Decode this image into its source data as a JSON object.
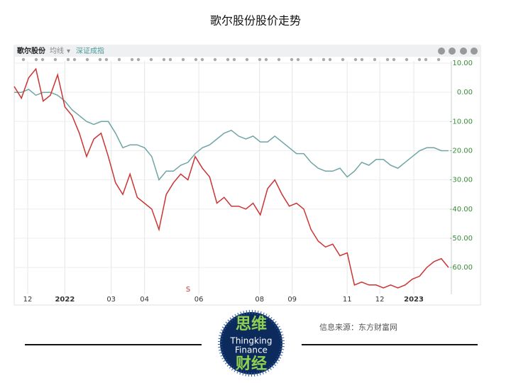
{
  "chart_data": {
    "type": "line",
    "title": "歌尔股份股价走势",
    "toolbar": {
      "ma": "均线"
    },
    "marker": "S",
    "source": "信息来源：东方财富网",
    "logo": {
      "top": "思维",
      "line1": "Thingking",
      "line2": "Finance",
      "bottom": "财经"
    },
    "x": [
      0,
      1,
      2,
      3,
      4,
      5,
      6,
      7,
      8,
      9,
      10,
      11,
      12,
      13,
      14,
      15,
      16,
      17,
      18,
      19,
      20,
      21,
      22,
      23,
      24,
      25,
      26,
      27,
      28,
      29,
      30,
      31,
      32,
      33,
      34,
      35,
      36,
      37,
      38,
      39,
      40,
      41,
      42,
      43,
      44,
      45,
      46,
      47,
      48,
      49,
      50,
      51,
      52,
      53,
      54,
      55,
      56,
      57,
      58,
      59,
      60
    ],
    "xlim": [
      0,
      60
    ],
    "xticks": [
      {
        "value": 1.86,
        "label": "12"
      },
      {
        "value": 7,
        "label": "2022"
      },
      {
        "value": 13.4,
        "label": "03"
      },
      {
        "value": 18,
        "label": "04"
      },
      {
        "value": 25.5,
        "label": "06"
      },
      {
        "value": 33.9,
        "label": "08"
      },
      {
        "value": 38.4,
        "label": "09"
      },
      {
        "value": 46,
        "label": "11"
      },
      {
        "value": 50.5,
        "label": "12"
      },
      {
        "value": 55.2,
        "label": "2023"
      }
    ],
    "ylim": [
      -68,
      10
    ],
    "yticks": [
      {
        "value": 10,
        "label": "10.00"
      },
      {
        "value": 0,
        "label": "0.00"
      },
      {
        "value": -10,
        "label": "-10.00"
      },
      {
        "value": -20,
        "label": "-20.00"
      },
      {
        "value": -30,
        "label": "-30.00"
      },
      {
        "value": -40,
        "label": "-40.00"
      },
      {
        "value": -50,
        "label": "-50.00"
      },
      {
        "value": -60,
        "label": "-60.00"
      }
    ],
    "grid": true,
    "series": [
      {
        "name": "歌尔股份",
        "color": "#cc3333",
        "values": [
          2,
          -2,
          5,
          8,
          -3,
          -1,
          6,
          -5,
          -8,
          -14,
          -22,
          -16,
          -14,
          -22,
          -31,
          -35,
          -28,
          -36,
          -38,
          -40,
          -47,
          -35,
          -31,
          -28,
          -30,
          -22,
          -26,
          -29,
          -38,
          -36,
          -39,
          -39,
          -40,
          -38,
          -42,
          -33,
          -30,
          -35,
          -39,
          -38,
          -40,
          -47,
          -51,
          -53,
          -52,
          -56,
          -55,
          -66,
          -65,
          -66,
          -66,
          -67,
          -66,
          -67,
          -66,
          -64,
          -63,
          -60,
          -58,
          -57,
          -60
        ]
      },
      {
        "name": "深证成指",
        "color": "#6fa5a5",
        "values": [
          0,
          0,
          1,
          -1,
          0,
          0,
          -1,
          -3,
          -6,
          -8,
          -10,
          -11,
          -10,
          -10,
          -14,
          -19,
          -18,
          -18,
          -19,
          -22,
          -30,
          -27,
          -27,
          -25,
          -24,
          -21,
          -19,
          -18,
          -16,
          -14,
          -13,
          -15,
          -16,
          -15,
          -17,
          -17,
          -15,
          -17,
          -19,
          -21,
          -21,
          -24,
          -26,
          -27,
          -27,
          -26,
          -29,
          -27,
          -24,
          -25,
          -23,
          -23,
          -25,
          -26,
          -24,
          -22,
          -20,
          -19,
          -19,
          -20,
          -20
        ]
      }
    ]
  }
}
